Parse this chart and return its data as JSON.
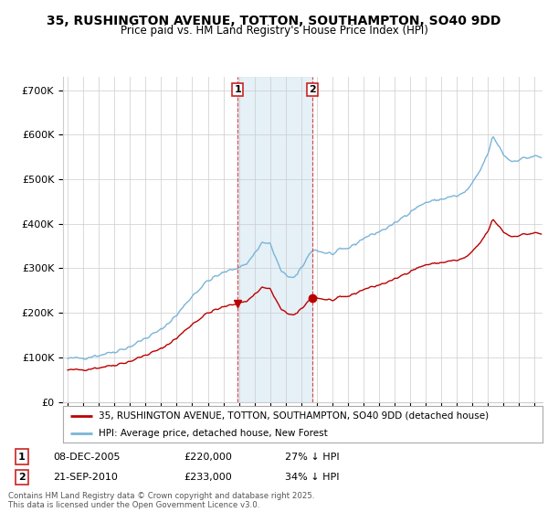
{
  "title": "35, RUSHINGTON AVENUE, TOTTON, SOUTHAMPTON, SO40 9DD",
  "subtitle": "Price paid vs. HM Land Registry's House Price Index (HPI)",
  "ylim": [
    0,
    730000
  ],
  "yticks": [
    0,
    100000,
    200000,
    300000,
    400000,
    500000,
    600000,
    700000
  ],
  "ytick_labels": [
    "£0",
    "£100K",
    "£200K",
    "£300K",
    "£400K",
    "£500K",
    "£600K",
    "£700K"
  ],
  "marker1_year": 2005.92,
  "marker1_price": 220000,
  "marker1_date_str": "08-DEC-2005",
  "marker1_pct": "27% ↓ HPI",
  "marker2_year": 2010.72,
  "marker2_price": 233000,
  "marker2_date_str": "21-SEP-2010",
  "marker2_pct": "34% ↓ HPI",
  "hpi_color": "#7ab4d8",
  "price_color": "#bb0000",
  "legend_house": "35, RUSHINGTON AVENUE, TOTTON, SOUTHAMPTON, SO40 9DD (detached house)",
  "legend_hpi": "HPI: Average price, detached house, New Forest",
  "footer": "Contains HM Land Registry data © Crown copyright and database right 2025.\nThis data is licensed under the Open Government Licence v3.0.",
  "bg_color": "#ffffff",
  "grid_color": "#cccccc",
  "shade_color": "#daeaf5"
}
